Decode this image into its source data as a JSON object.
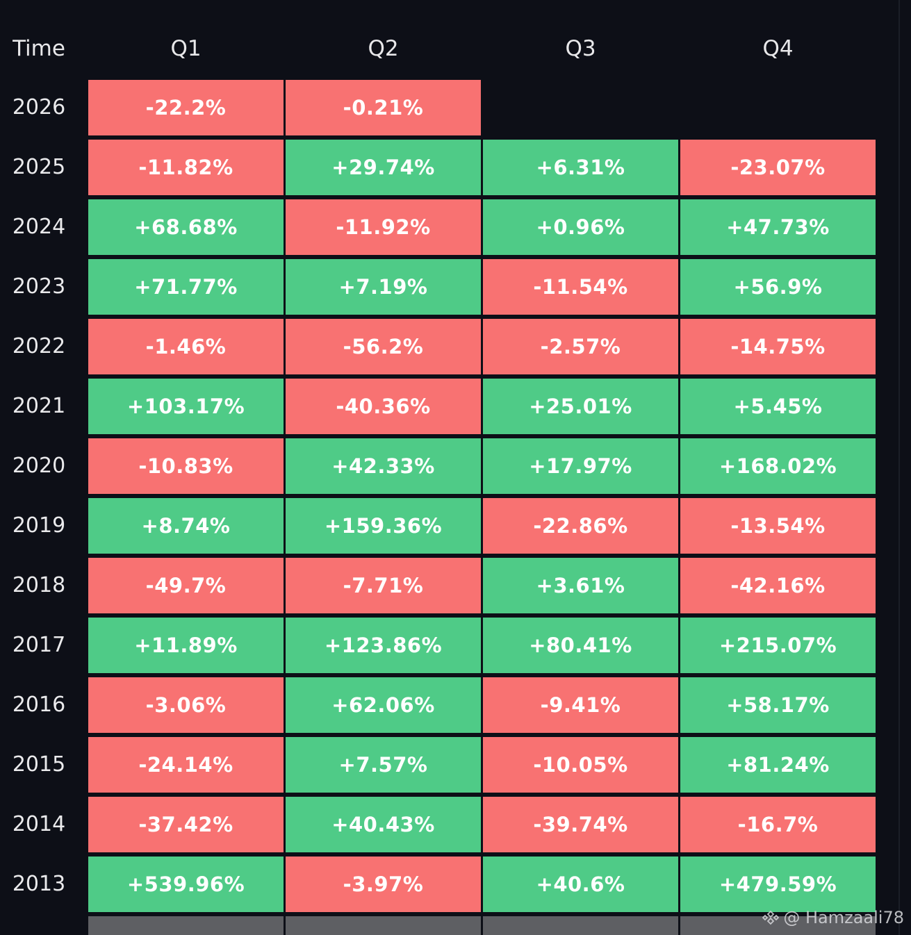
{
  "chart_data": {
    "type": "table",
    "columns": [
      "Time",
      "Q1",
      "Q2",
      "Q3",
      "Q4"
    ],
    "rows": [
      {
        "year": "2026",
        "values": [
          "-22.2%",
          "-0.21%",
          null,
          null
        ]
      },
      {
        "year": "2025",
        "values": [
          "-11.82%",
          "+29.74%",
          "+6.31%",
          "-23.07%"
        ]
      },
      {
        "year": "2024",
        "values": [
          "+68.68%",
          "-11.92%",
          "+0.96%",
          "+47.73%"
        ]
      },
      {
        "year": "2023",
        "values": [
          "+71.77%",
          "+7.19%",
          "-11.54%",
          "+56.9%"
        ]
      },
      {
        "year": "2022",
        "values": [
          "-1.46%",
          "-56.2%",
          "-2.57%",
          "-14.75%"
        ]
      },
      {
        "year": "2021",
        "values": [
          "+103.17%",
          "-40.36%",
          "+25.01%",
          "+5.45%"
        ]
      },
      {
        "year": "2020",
        "values": [
          "-10.83%",
          "+42.33%",
          "+17.97%",
          "+168.02%"
        ]
      },
      {
        "year": "2019",
        "values": [
          "+8.74%",
          "+159.36%",
          "-22.86%",
          "-13.54%"
        ]
      },
      {
        "year": "2018",
        "values": [
          "-49.7%",
          "-7.71%",
          "+3.61%",
          "-42.16%"
        ]
      },
      {
        "year": "2017",
        "values": [
          "+11.89%",
          "+123.86%",
          "+80.41%",
          "+215.07%"
        ]
      },
      {
        "year": "2016",
        "values": [
          "-3.06%",
          "+62.06%",
          "-9.41%",
          "+58.17%"
        ]
      },
      {
        "year": "2015",
        "values": [
          "-24.14%",
          "+7.57%",
          "-10.05%",
          "+81.24%"
        ]
      },
      {
        "year": "2014",
        "values": [
          "-37.42%",
          "+40.43%",
          "-39.74%",
          "-16.7%"
        ]
      },
      {
        "year": "2013",
        "values": [
          "+539.96%",
          "-3.97%",
          "+40.6%",
          "+479.59%"
        ]
      }
    ],
    "colors": {
      "positive": "#4fcb87",
      "negative": "#f87272",
      "background": "#0d0f17",
      "partial_row": "#5e5f63"
    }
  },
  "watermark": {
    "icon": "binance-logo-icon",
    "text": "@ Hamzaali78"
  }
}
